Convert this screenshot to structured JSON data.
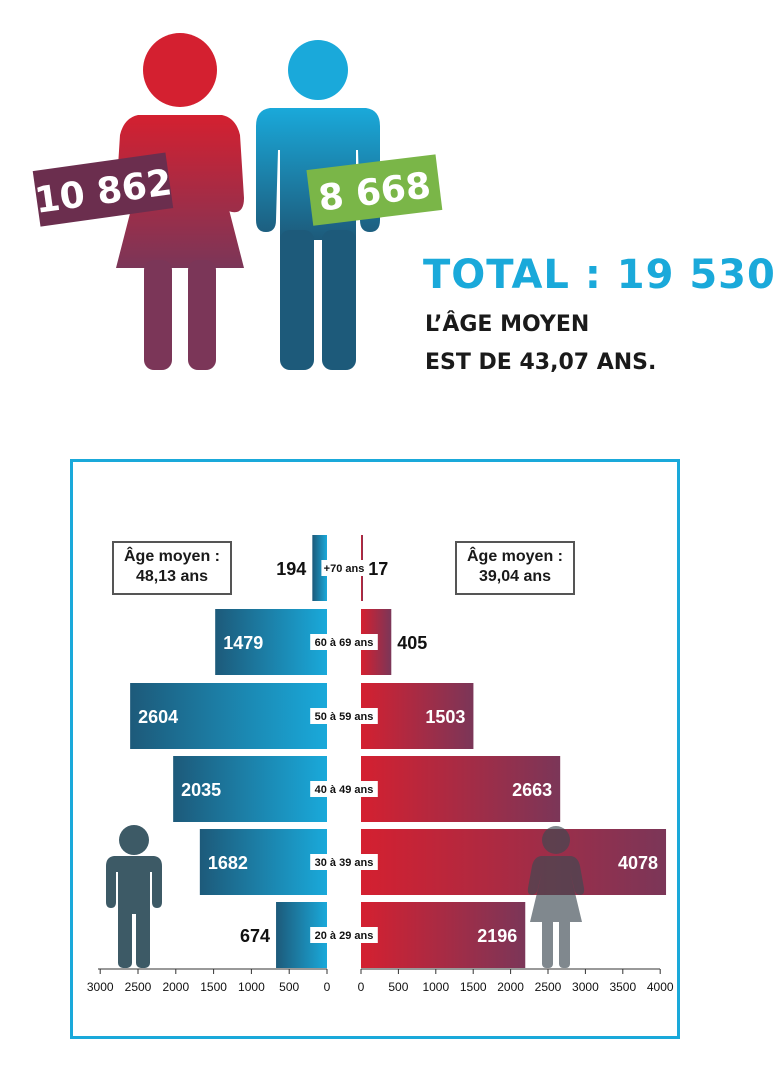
{
  "summary": {
    "women_count": "10 862",
    "men_count": "8 668",
    "total": "TOTAL : 19 530",
    "average_age_line1": "L’ÂGE MOYEN",
    "average_age_line2": "EST DE 43,07 ANS."
  },
  "avg_boxes": {
    "men_label": "Âge moyen :",
    "men_value": "48,13 ans",
    "women_label": "Âge moyen :",
    "women_value": "39,04 ans"
  },
  "colors": {
    "women": "#d42030",
    "women_dark": "#7b3658",
    "men": "#1aa9da",
    "men_dark": "#1d5a7a",
    "men_count_tag": "#7ab648",
    "women_count_tag": "#6b2e4e",
    "frame": "#1aa9da"
  },
  "chart_data": {
    "type": "bar",
    "orientation": "horizontal",
    "categories": [
      "+70 ans",
      "60 à 69 ans",
      "50 à 59 ans",
      "40 à 49 ans",
      "30 à 39 ans",
      "20 à 29 ans"
    ],
    "series": [
      {
        "values": [
          194,
          1479,
          2604,
          2035,
          1682,
          674
        ]
      },
      {
        "values": [
          17,
          405,
          1503,
          2663,
          4078,
          2196
        ]
      }
    ],
    "left_axis": {
      "ticks": [
        "3000",
        "2500",
        "2000",
        "1500",
        "1000",
        "500",
        "0"
      ],
      "max": 3000
    },
    "right_axis": {
      "ticks": [
        "0",
        "500",
        "1000",
        "1500",
        "2000",
        "2500",
        "3000",
        "3500",
        "4000"
      ],
      "max": 4000
    },
    "grid": false,
    "legend": "none"
  }
}
